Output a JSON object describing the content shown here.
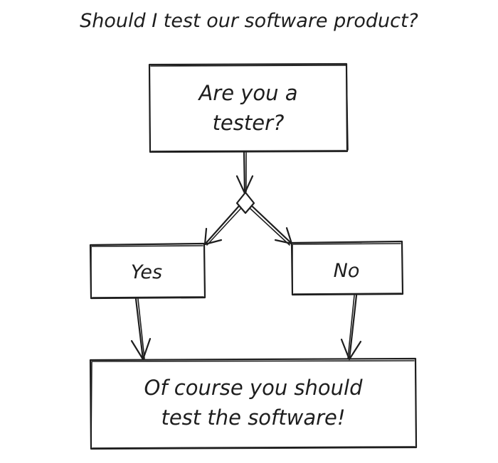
{
  "title": "Should I test our software product?",
  "nodes": {
    "question": {
      "line1": "Are you a",
      "line2": "tester?"
    },
    "yes": {
      "label": "Yes"
    },
    "no": {
      "label": "No"
    },
    "result": {
      "line1": "Of course you should",
      "line2": "test the software!"
    }
  }
}
